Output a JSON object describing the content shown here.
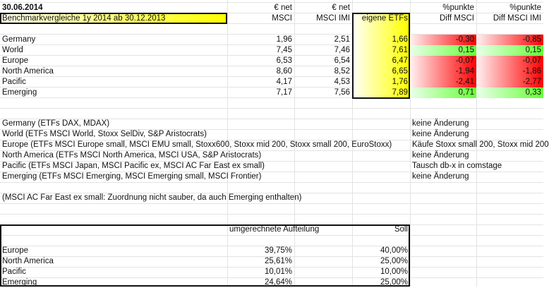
{
  "date": "30.06.2014",
  "title": "Benchmarkvergleiche 1y 2014 ab 30.12.2013",
  "headers": {
    "msci_top": "€ net",
    "msci": "MSCI",
    "imi_top": "€ net",
    "imi": "MSCI IMI",
    "etf": "eigene ETFs",
    "diff_msci_top": "%punkte",
    "diff_msci": "Diff MSCI",
    "diff_imi_top": "%punkte",
    "diff_imi": "Diff MSCI IMI"
  },
  "rows": [
    {
      "region": "Germany",
      "msci": "1,96",
      "imi": "2,51",
      "etf": "1,66",
      "diff_msci": "-0,30",
      "diff_imi": "-0,85"
    },
    {
      "region": "World",
      "msci": "7,45",
      "imi": "7,46",
      "etf": "7,61",
      "diff_msci": "0,15",
      "diff_imi": "0,15"
    },
    {
      "region": "Europe",
      "msci": "6,53",
      "imi": "6,54",
      "etf": "6,47",
      "diff_msci": "-0,07",
      "diff_imi": "-0,07"
    },
    {
      "region": "North America",
      "msci": "8,60",
      "imi": "8,52",
      "etf": "6,65",
      "diff_msci": "-1,94",
      "diff_imi": "-1,86"
    },
    {
      "region": "Pacific",
      "msci": "4,17",
      "imi": "4,53",
      "etf": "1,76",
      "diff_msci": "-2,41",
      "diff_imi": "-2,77"
    },
    {
      "region": "Emerging",
      "msci": "7,17",
      "imi": "7,56",
      "etf": "7,89",
      "diff_msci": "0,71",
      "diff_imi": "0,33"
    }
  ],
  "colors": {
    "negative": "#ff0000",
    "positive": "#66ff33",
    "highlight": "#ffff00"
  },
  "notes": [
    {
      "text": "Germany (ETFs DAX, MDAX)",
      "action": "keine Änderung"
    },
    {
      "text": "World (ETFs MSCI World, Stoxx SelDiv, S&P Aristocrats)",
      "action": "keine Änderung"
    },
    {
      "text": "Europe (ETFs MSCI Europe small, MSCI EMU small, Stoxx600, Stoxx mid 200, Stoxx small 200, EuroStoxx)",
      "action": "Käufe Stoxx small 200, Stoxx mid 200"
    },
    {
      "text": "North America (ETFs MSCI North America, MSCI USA, S&P Aristocrats)",
      "action": "keine Änderung"
    },
    {
      "text": "Pacific (ETFs MSCI Japan, MSCI Pacific ex, MSCI AC  Far East ex small)",
      "action": "Tausch db-x in comstage"
    },
    {
      "text": "Emerging (ETFs MSCI Emerging, MSCI Emerging small, MSCI Frontier)",
      "action": "keine Änderung"
    }
  ],
  "footnote": "(MSCI AC Far East ex small: Zuordnung nicht sauber, da auch Emerging enthalten)",
  "allocation": {
    "header_actual": "umgerechnete Aufteilung",
    "header_target": "Soll",
    "rows": [
      {
        "region": "Europe",
        "actual": "39,75%",
        "target": "40,00%"
      },
      {
        "region": "North America",
        "actual": "25,61%",
        "target": "25,00%"
      },
      {
        "region": "Pacific",
        "actual": "10,01%",
        "target": "10,00%"
      },
      {
        "region": "Emerging",
        "actual": "24,64%",
        "target": "25,00%"
      }
    ]
  }
}
